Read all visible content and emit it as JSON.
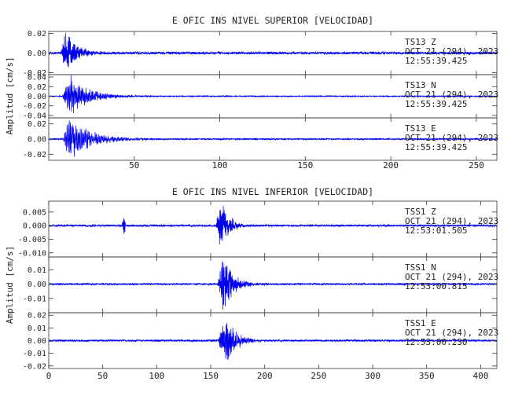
{
  "chart_data": [
    {
      "type": "line",
      "title": "E OFIC INS NIVEL SUPERIOR [VELOCIDAD]",
      "ylabel": "Amplitud [cm/s]",
      "xlim": [
        0,
        262
      ],
      "xticks": [
        50,
        100,
        150,
        200,
        250
      ],
      "color": "#0000ee",
      "grid": false,
      "series": [
        {
          "name": "TS13 Z",
          "station": "TS13",
          "component": "Z",
          "date": "OCT 21 (294), 2023",
          "time": "12:55:39.425",
          "ylim": [
            -0.022,
            0.022
          ],
          "yticks": [
            0.02,
            0.0,
            -0.02
          ],
          "ytick_labels": [
            "0.02",
            "0.00",
            "-0.02"
          ],
          "onset": 7,
          "rise": 3,
          "peak": 0.021,
          "decay": 6,
          "freq": 1.2,
          "noise": 0.0012,
          "coda_freq": 0.45,
          "seed": 11
        },
        {
          "name": "TS13 N",
          "station": "TS13",
          "component": "N",
          "date": "OCT 21 (294), 2023",
          "time": "12:55:39.425",
          "ylim": [
            -0.045,
            0.045
          ],
          "yticks": [
            0.04,
            0.02,
            0.0,
            -0.02,
            -0.04
          ],
          "ytick_labels": [
            "0.04",
            "0.02",
            "0.00",
            "-0.02",
            "-0.04"
          ],
          "onset": 8,
          "rise": 4,
          "peak": 0.036,
          "decay": 11,
          "freq": 0.9,
          "noise": 0.001,
          "coda_freq": 0.5,
          "seed": 23
        },
        {
          "name": "TS13 E",
          "station": "TS13",
          "component": "E",
          "date": "OCT 21 (294), 2023",
          "time": "12:55:39.425",
          "ylim": [
            -0.028,
            0.028
          ],
          "yticks": [
            0.02,
            0.0,
            -0.02
          ],
          "ytick_labels": [
            "0.02",
            "0.00",
            "-0.02"
          ],
          "onset": 8,
          "rise": 4,
          "peak": 0.023,
          "decay": 13,
          "freq": 0.8,
          "noise": 0.0009,
          "coda_freq": 0.55,
          "seed": 37
        }
      ]
    },
    {
      "type": "line",
      "title": "E OFIC INS NIVEL INFERIOR [VELOCIDAD]",
      "ylabel": "Amplitud [cm/s]",
      "xlim": [
        0,
        415
      ],
      "xticks": [
        0,
        50,
        100,
        150,
        200,
        250,
        300,
        350,
        400
      ],
      "color": "#0000ee",
      "grid": false,
      "series": [
        {
          "name": "TSS1 Z",
          "station": "TSS1",
          "component": "Z",
          "date": "OCT 21 (294), 2023",
          "time": "12:53:01.505",
          "ylim": [
            -0.0115,
            0.009
          ],
          "yticks": [
            0.005,
            0.0,
            -0.005,
            -0.01
          ],
          "ytick_labels": [
            "0.005",
            "0.000",
            "-0.005",
            "-0.010"
          ],
          "onset": 154,
          "rise": 6,
          "peak": 0.0082,
          "decay": 7,
          "freq": 1.3,
          "noise": 0.00035,
          "coda_freq": 0.6,
          "seed": 5
        },
        {
          "name": "TSS1 N",
          "station": "TSS1",
          "component": "N",
          "date": "OCT 21 (294), 2023",
          "time": "12:53:00.815",
          "ylim": [
            -0.02,
            0.019
          ],
          "yticks": [
            0.01,
            0.0,
            -0.01
          ],
          "ytick_labels": [
            "0.01",
            "0.00",
            "-0.01"
          ],
          "onset": 156,
          "rise": 6,
          "peak": 0.017,
          "decay": 9,
          "freq": 1.2,
          "noise": 0.0006,
          "coda_freq": 0.65,
          "seed": 71
        },
        {
          "name": "TSS1 E",
          "station": "TSS1",
          "component": "E",
          "date": "OCT 21 (294), 2023",
          "time": "12:53:00.230",
          "ylim": [
            -0.022,
            0.022
          ],
          "yticks": [
            0.02,
            0.01,
            0.0,
            -0.01,
            -0.02
          ],
          "ytick_labels": [
            "0.02",
            "0.01",
            "0.00",
            "-0.01",
            "-0.02"
          ],
          "onset": 157,
          "rise": 6,
          "peak": 0.018,
          "decay": 9,
          "freq": 1.1,
          "noise": 0.0007,
          "coda_freq": 0.6,
          "seed": 97
        }
      ]
    }
  ]
}
